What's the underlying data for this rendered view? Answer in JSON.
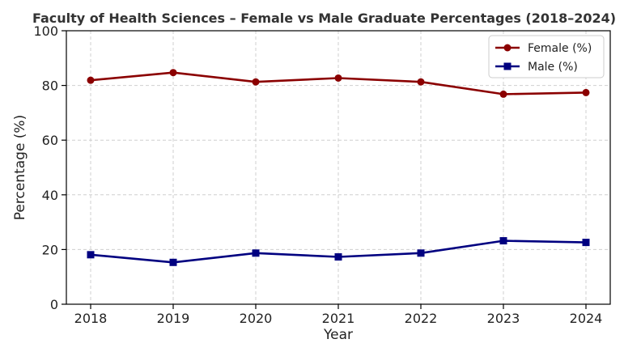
{
  "chart_data": {
    "type": "line",
    "title": "Faculty of Health Sciences – Female vs Male Graduate Percentages (2018–2024)",
    "xlabel": "Year",
    "ylabel": "Percentage (%)",
    "x": [
      2018,
      2019,
      2020,
      2021,
      2022,
      2023,
      2024
    ],
    "ylim": [
      0,
      100
    ],
    "yticks": [
      0,
      20,
      40,
      60,
      80,
      100
    ],
    "grid": true,
    "legend_position": "top-right",
    "series": [
      {
        "name": "Female (%)",
        "color": "#8b0000",
        "marker": "circle",
        "values": [
          81.9,
          84.7,
          81.3,
          82.7,
          81.3,
          76.8,
          77.4
        ]
      },
      {
        "name": "Male (%)",
        "color": "#000080",
        "marker": "square",
        "values": [
          18.1,
          15.3,
          18.7,
          17.3,
          18.7,
          23.2,
          22.6
        ]
      }
    ]
  }
}
